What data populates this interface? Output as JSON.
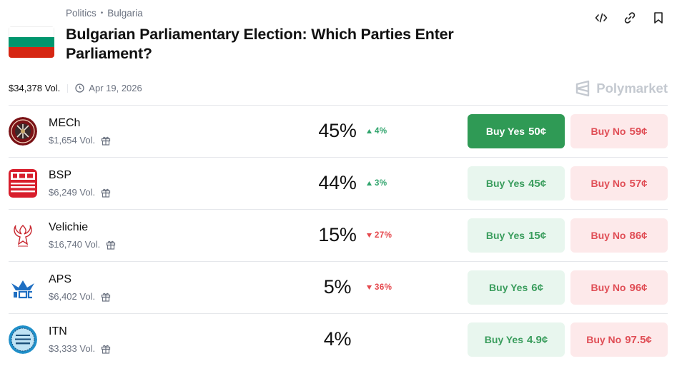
{
  "breadcrumb": {
    "category": "Politics",
    "subcategory": "Bulgaria"
  },
  "title": "Bulgarian Parliamentary Election: Which Parties Enter Parliament?",
  "market_meta": {
    "volume": "$34,378 Vol.",
    "date": "Apr 19, 2026"
  },
  "brand": {
    "name": "Polymarket"
  },
  "icons": {
    "embed": "code-icon",
    "link": "link-icon",
    "bookmark": "bookmark-icon",
    "clock": "clock-icon",
    "gift": "gift-icon"
  },
  "colors": {
    "yes_active": "#2f9a55",
    "yes_bg": "#e8f6ee",
    "no_bg": "#fde9ea",
    "up": "#30a46c",
    "down": "#e5484d"
  },
  "outcomes": [
    {
      "name": "MECh",
      "volume": "$1,654 Vol.",
      "percent": "45%",
      "change": "4%",
      "direction": "up",
      "yes_label": "Buy Yes",
      "yes_price": "50¢",
      "no_label": "Buy No",
      "no_price": "59¢"
    },
    {
      "name": "BSP",
      "volume": "$6,249 Vol.",
      "percent": "44%",
      "change": "3%",
      "direction": "up",
      "yes_label": "Buy Yes",
      "yes_price": "45¢",
      "no_label": "Buy No",
      "no_price": "57¢"
    },
    {
      "name": "Velichie",
      "volume": "$16,740 Vol.",
      "percent": "15%",
      "change": "27%",
      "direction": "down",
      "yes_label": "Buy Yes",
      "yes_price": "15¢",
      "no_label": "Buy No",
      "no_price": "86¢"
    },
    {
      "name": "APS",
      "volume": "$6,402 Vol.",
      "percent": "5%",
      "change": "36%",
      "direction": "down",
      "yes_label": "Buy Yes",
      "yes_price": "6¢",
      "no_label": "Buy No",
      "no_price": "96¢"
    },
    {
      "name": "ITN",
      "volume": "$3,333 Vol.",
      "percent": "4%",
      "change": "",
      "direction": "",
      "yes_label": "Buy Yes",
      "yes_price": "4.9¢",
      "no_label": "Buy No",
      "no_price": "97.5¢"
    }
  ]
}
